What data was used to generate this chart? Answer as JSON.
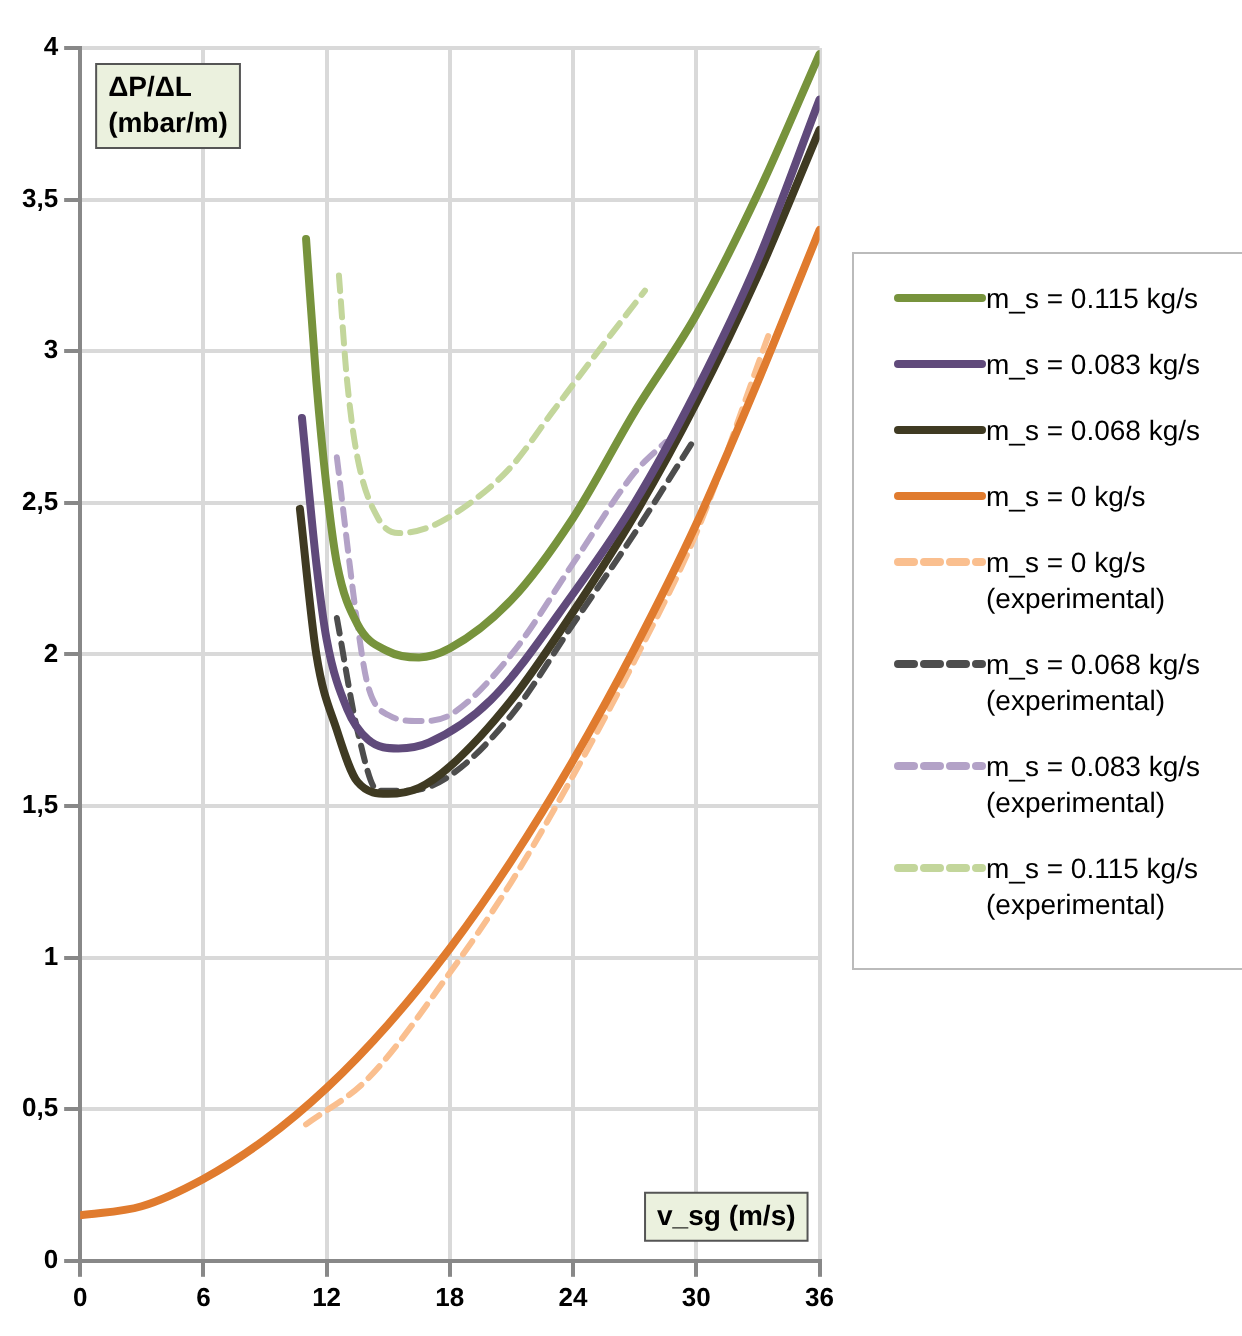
{
  "chart_data": {
    "type": "line",
    "xlabel": "v_sg (m/s)",
    "ylabel": "ΔP/ΔL (mbar/m)",
    "xlim": [
      0,
      36
    ],
    "xticks": [
      0,
      6,
      12,
      18,
      24,
      30,
      36
    ],
    "ylim": [
      0,
      4
    ],
    "yticks": [
      0,
      {
        "value": 0.5,
        "label": "0,5"
      },
      1,
      {
        "value": 1.5,
        "label": "1,5"
      },
      2,
      {
        "value": 2.5,
        "label": "2,5"
      },
      3,
      {
        "value": 3.5,
        "label": "3,5"
      },
      4
    ],
    "grid": true,
    "legend": "right",
    "marker": "none",
    "series": [
      {
        "name": "m_s = 0.115 kg/s",
        "color": "#77933c",
        "line_style": "solid",
        "x": [
          11,
          11.5,
          12,
          12.5,
          13.5,
          15,
          16.5,
          18,
          21,
          24,
          27,
          30,
          33,
          36
        ],
        "values": [
          3.37,
          2.9,
          2.55,
          2.3,
          2.1,
          2.01,
          1.99,
          2.02,
          2.18,
          2.45,
          2.8,
          3.12,
          3.52,
          3.98
        ]
      },
      {
        "name": "m_s = 0.083 kg/s",
        "color": "#604a7b",
        "line_style": "solid",
        "x": [
          10.8,
          11.5,
          12,
          13,
          14,
          15.5,
          17,
          20,
          24,
          27,
          30,
          33,
          36
        ],
        "values": [
          2.78,
          2.3,
          2.05,
          1.82,
          1.72,
          1.69,
          1.71,
          1.85,
          2.2,
          2.5,
          2.87,
          3.3,
          3.83
        ]
      },
      {
        "name": "m_s = 0.068 kg/s",
        "color": "#3f3a22",
        "line_style": "solid",
        "x": [
          10.7,
          11.5,
          12.5,
          13.5,
          15,
          16.5,
          18,
          21,
          24,
          27,
          30,
          33,
          36
        ],
        "values": [
          2.48,
          2.0,
          1.75,
          1.58,
          1.54,
          1.56,
          1.63,
          1.85,
          2.14,
          2.46,
          2.83,
          3.25,
          3.73
        ]
      },
      {
        "name": "m_s = 0 kg/s",
        "color": "#e07b2e",
        "line_style": "solid",
        "x": [
          0,
          3,
          6,
          9,
          12,
          15,
          18,
          21,
          24,
          27,
          30,
          33,
          36
        ],
        "values": [
          0.15,
          0.18,
          0.27,
          0.4,
          0.57,
          0.78,
          1.03,
          1.32,
          1.65,
          2.02,
          2.43,
          2.9,
          3.4
        ]
      },
      {
        "name": "m_s = 0 kg/s (experimental)",
        "color": "#fabf8f",
        "line_style": "dashed",
        "x": [
          11,
          14,
          18,
          21,
          24,
          27,
          30,
          33.5
        ],
        "values": [
          0.45,
          0.6,
          0.95,
          1.25,
          1.6,
          1.98,
          2.4,
          3.05
        ]
      },
      {
        "name": "m_s = 0.068 kg/s (experimental)",
        "color": "#4d4d4d",
        "line_style": "dashed",
        "x": [
          12.5,
          13.5,
          14.5,
          16,
          18,
          21,
          24,
          27,
          30
        ],
        "values": [
          2.12,
          1.75,
          1.55,
          1.55,
          1.6,
          1.8,
          2.1,
          2.4,
          2.72
        ]
      },
      {
        "name": "m_s = 0.083 kg/s (experimental)",
        "color": "#b3a2c7",
        "line_style": "dashed",
        "x": [
          12.5,
          13.5,
          14,
          15,
          16.5,
          18,
          21,
          24,
          27,
          28.5
        ],
        "values": [
          2.65,
          2.1,
          1.9,
          1.8,
          1.78,
          1.8,
          2.0,
          2.3,
          2.6,
          2.7
        ]
      },
      {
        "name": "m_s = 0.115 kg/s (experimental)",
        "color": "#c3d69b",
        "line_style": "dashed",
        "x": [
          12.6,
          13,
          13.5,
          14.5,
          15.5,
          17,
          19,
          21,
          23,
          25,
          27.5
        ],
        "values": [
          3.25,
          2.9,
          2.65,
          2.45,
          2.4,
          2.42,
          2.5,
          2.62,
          2.8,
          2.98,
          3.2
        ]
      }
    ]
  }
}
